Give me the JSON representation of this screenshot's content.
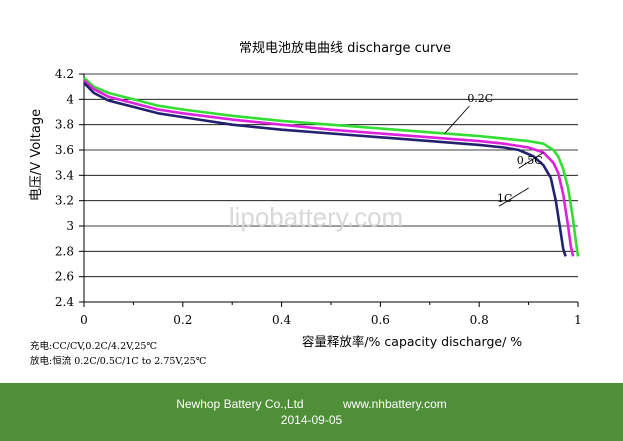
{
  "chart_data": {
    "type": "line",
    "title": "常规电池放电曲线   discharge curve",
    "xlabel": "容量释放率/%   capacity discharge/ %",
    "ylabel": "电压/V   Voltage",
    "xlim": [
      0,
      1
    ],
    "ylim": [
      2.4,
      4.2
    ],
    "xticks": [
      0,
      0.2,
      0.4,
      0.6,
      0.8,
      1
    ],
    "yticks": [
      2.4,
      2.6,
      2.8,
      3,
      3.2,
      3.4,
      3.6,
      3.8,
      4,
      4.2
    ],
    "xtick_labels": [
      "0",
      "0.2",
      "0.4",
      "0.6",
      "0.8",
      "1"
    ],
    "ytick_labels": [
      "2.4",
      "2.6",
      "2.8",
      "3",
      "3.2",
      "3.4",
      "3.6",
      "3.8",
      "4",
      "4.2"
    ],
    "grid": "horizontal",
    "series": [
      {
        "name": "0.2C",
        "color": "#33dd33",
        "x": [
          0,
          0.02,
          0.05,
          0.1,
          0.15,
          0.2,
          0.3,
          0.4,
          0.5,
          0.6,
          0.7,
          0.8,
          0.85,
          0.9,
          0.93,
          0.95,
          0.96,
          0.97,
          0.98,
          0.99,
          0.995,
          1.0
        ],
        "y": [
          4.17,
          4.1,
          4.05,
          4.0,
          3.95,
          3.92,
          3.87,
          3.83,
          3.8,
          3.77,
          3.74,
          3.71,
          3.69,
          3.67,
          3.65,
          3.6,
          3.55,
          3.45,
          3.3,
          3.05,
          2.9,
          2.76
        ]
      },
      {
        "name": "0.5C",
        "color": "#dd22dd",
        "x": [
          0,
          0.02,
          0.05,
          0.1,
          0.15,
          0.2,
          0.3,
          0.4,
          0.5,
          0.6,
          0.7,
          0.8,
          0.85,
          0.9,
          0.93,
          0.95,
          0.96,
          0.97,
          0.98,
          0.985,
          0.99
        ],
        "y": [
          4.15,
          4.08,
          4.02,
          3.97,
          3.92,
          3.89,
          3.84,
          3.8,
          3.76,
          3.73,
          3.7,
          3.67,
          3.65,
          3.62,
          3.58,
          3.5,
          3.42,
          3.25,
          3.0,
          2.85,
          2.76
        ]
      },
      {
        "name": "1C",
        "color": "#22226e",
        "x": [
          0,
          0.02,
          0.05,
          0.1,
          0.15,
          0.2,
          0.3,
          0.4,
          0.5,
          0.6,
          0.7,
          0.8,
          0.85,
          0.88,
          0.91,
          0.93,
          0.945,
          0.955,
          0.965,
          0.97,
          0.975
        ],
        "y": [
          4.13,
          4.05,
          3.99,
          3.94,
          3.89,
          3.86,
          3.8,
          3.76,
          3.73,
          3.7,
          3.67,
          3.64,
          3.62,
          3.6,
          3.55,
          3.48,
          3.38,
          3.2,
          2.95,
          2.82,
          2.76
        ]
      }
    ],
    "annotations": [
      {
        "text": "0.2C",
        "x": 0.78,
        "y": 3.97,
        "points_to": [
          0.73,
          3.73
        ]
      },
      {
        "text": "0.5C",
        "x": 0.88,
        "y": 3.48,
        "points_to": [
          0.93,
          3.58
        ]
      },
      {
        "text": "1C",
        "x": 0.84,
        "y": 3.18,
        "points_to": [
          0.9,
          3.3
        ]
      }
    ],
    "watermark": "lipobattery.com"
  },
  "conditions": {
    "charge": "充电:CC/CV,0.2C/4.2V,25℃",
    "discharge": "放电:恒流 0.2C/0.5C/1C to 2.75V,25℃"
  },
  "footer": {
    "company": "Newhop Battery Co.,Ltd",
    "website": "www.nhbattery.com",
    "date": "2014-09-05",
    "background": "#4e8f38"
  }
}
